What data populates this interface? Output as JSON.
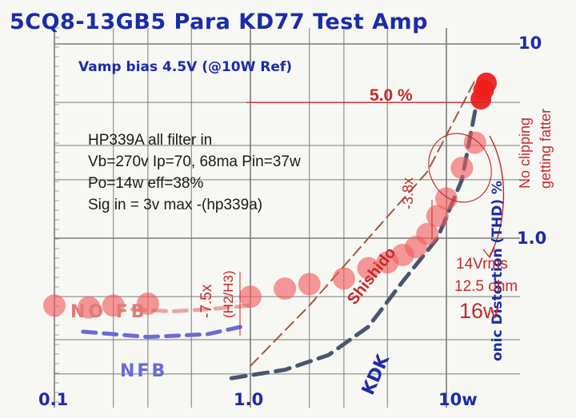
{
  "title": "5CQ8-13GB5 Para KD77 Test Amp",
  "subtitle": "Vamp bias 4.5V (@10W Ref)",
  "info_lines": [
    "HP339A all filter in",
    "Vb=270v  Ip=70, 68ma  Pin=37w",
    "Po=14w  eff=38%",
    "Sig in = 3v max -(hp339a)"
  ],
  "colors": {
    "title": "#1a2ca8",
    "grid": "#7a7a7a",
    "data_points": "#f25a5a",
    "annotation": "#c42a2a",
    "kdk_line": "#4a5670",
    "shishido_line": "#a05a3a"
  },
  "chart_data": {
    "type": "scatter",
    "title": "5CQ8-13GB5 Para KD77 Test Amp",
    "xlabel": "",
    "ylabel": "onic Distortion (THD) %",
    "x_scale": "log",
    "y_scale": "log",
    "xlim": [
      0.1,
      15
    ],
    "ylim": [
      0.2,
      10
    ],
    "grid": true,
    "x_ticks": [
      "0.1",
      "1.0",
      "10w"
    ],
    "y_ticks": [
      "10",
      "1.0"
    ],
    "series": [
      {
        "name": "",
        "x": [
          0.1,
          0.15,
          0.2,
          0.3,
          1.0,
          1.5,
          2.0,
          3.0,
          4.0,
          5.0,
          6.0,
          7.0,
          8.0,
          9.0,
          10.0,
          12.0,
          14.0,
          15.0,
          15.5,
          16.0
        ],
        "y": [
          0.45,
          0.44,
          0.45,
          0.46,
          0.5,
          0.55,
          0.58,
          0.62,
          0.7,
          0.75,
          0.82,
          0.9,
          1.05,
          1.3,
          1.6,
          2.3,
          3.1,
          5.2,
          5.8,
          6.3
        ]
      }
    ],
    "reference_lines": [
      {
        "name": "KDK",
        "x": [
          0.8,
          1.5,
          2.5,
          4.0,
          6.0,
          9.0,
          12.0,
          14.0
        ],
        "y": [
          0.19,
          0.21,
          0.25,
          0.35,
          0.6,
          1.0,
          2.0,
          4.5
        ]
      },
      {
        "name": "Shishido",
        "x": [
          1.0,
          2.0,
          4.0,
          8.0,
          14.0
        ],
        "y": [
          0.22,
          0.45,
          1.0,
          2.2,
          6.5
        ]
      },
      {
        "name": "",
        "x": [
          0.25,
          0.4,
          0.6,
          1.0
        ],
        "y": [
          0.43,
          0.42,
          0.43,
          0.45
        ]
      },
      {
        "name": "",
        "x": [
          0.14,
          0.3,
          0.6,
          0.9
        ],
        "y": [
          0.33,
          0.31,
          0.32,
          0.35
        ]
      }
    ],
    "threshold_marker": {
      "label": "5.0 %",
      "y": 5.0
    },
    "annotations": [
      "5.0 %",
      "-3.8x",
      "-7.5x",
      "(H2/H3)",
      "Shishido",
      "KDK",
      "14Vrms",
      "12.5 ohm",
      "16w",
      "No clipping",
      "getting fatter",
      "NO FB",
      "NFB"
    ]
  }
}
